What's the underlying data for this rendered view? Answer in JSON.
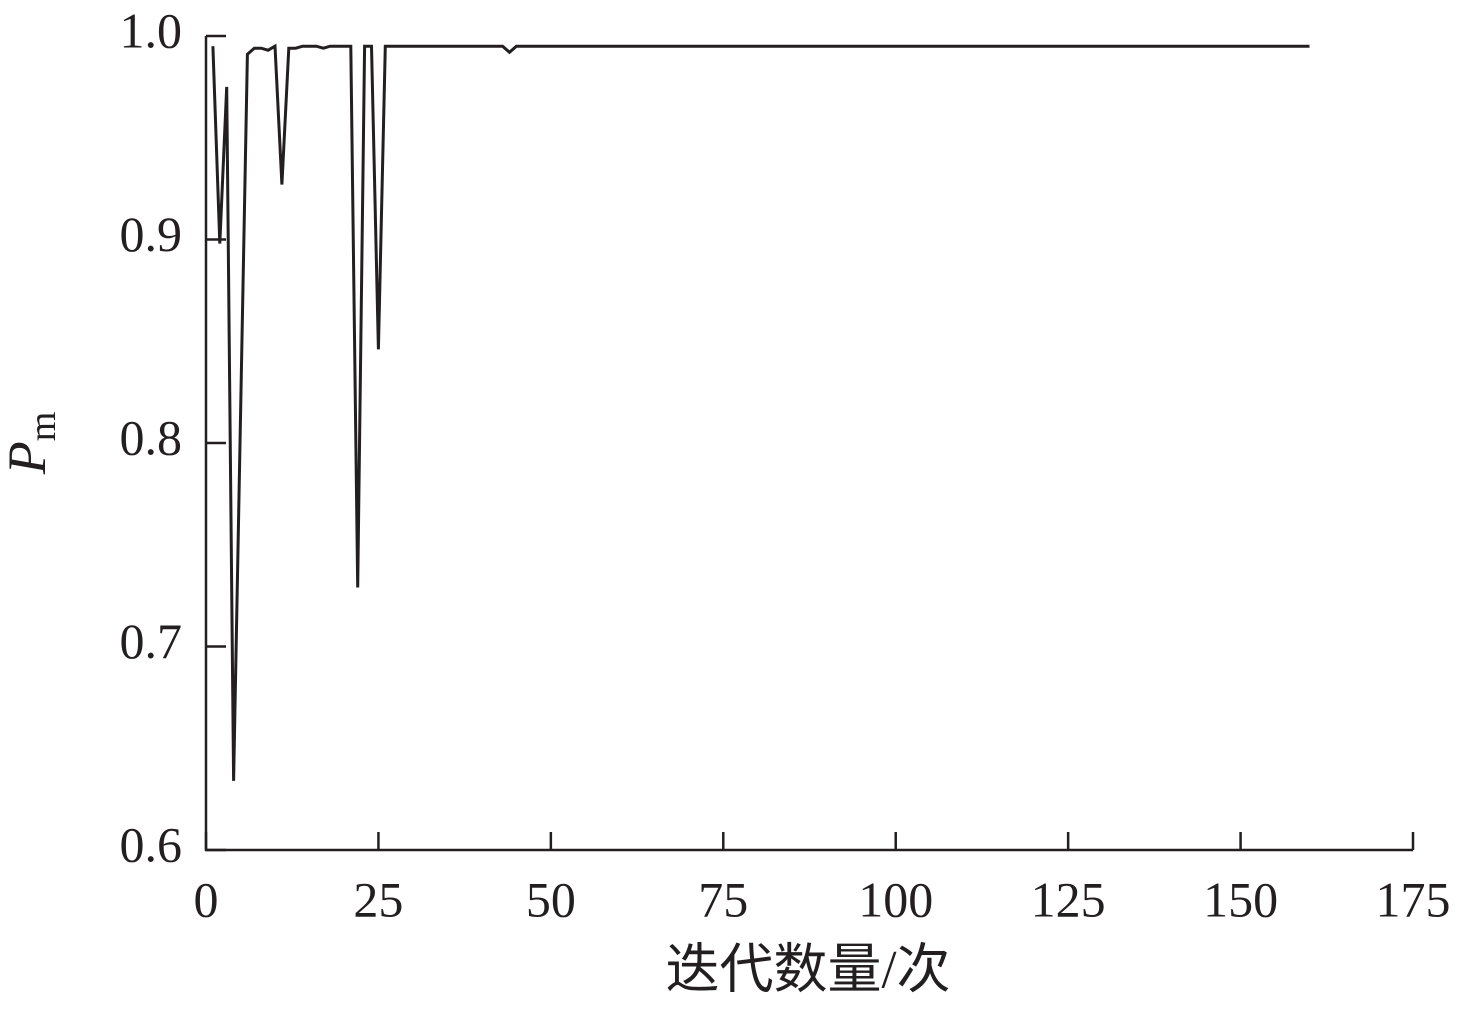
{
  "chart_data": {
    "type": "line",
    "xlabel": "迭代数量/次",
    "ylabel": "P",
    "ylabel_subscript": "m",
    "x": [
      1,
      2,
      3,
      4,
      6,
      7,
      8,
      9,
      10,
      11,
      12,
      13,
      14,
      16,
      17,
      18,
      21,
      22,
      23,
      24,
      25,
      26,
      43,
      44,
      45,
      160
    ],
    "series": [
      {
        "color": "#231f20",
        "values": [
          0.995,
          0.898,
          0.975,
          0.634,
          0.991,
          0.994,
          0.994,
          0.993,
          0.995,
          0.927,
          0.994,
          0.994,
          0.995,
          0.995,
          0.994,
          0.995,
          0.995,
          0.729,
          0.995,
          0.995,
          0.846,
          0.995,
          0.995,
          0.992,
          0.995,
          0.995
        ]
      }
    ],
    "xlim": [
      0,
      175
    ],
    "xticks": [
      0,
      25,
      50,
      75,
      100,
      125,
      150,
      175
    ],
    "ylim": [
      0.6,
      1
    ],
    "yticks": [
      0.6,
      0.7,
      0.8,
      0.9,
      {
        "value": 1,
        "label": "1.0"
      }
    ],
    "grid": false
  }
}
